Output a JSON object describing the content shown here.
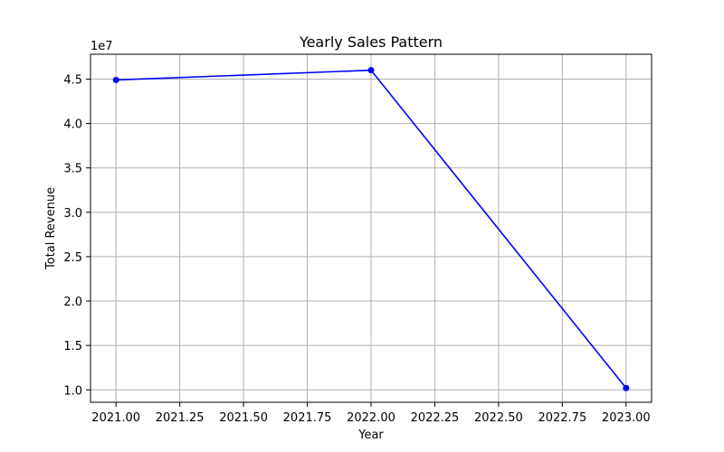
{
  "chart_data": {
    "type": "line",
    "title": "Yearly Sales Pattern",
    "xlabel": "Year",
    "ylabel": "Total Revenue",
    "y_offset_label": "1e7",
    "y_scale": 10000000,
    "x": [
      2021,
      2022,
      2023
    ],
    "series": [
      {
        "values": [
          44900000,
          46000000,
          10200000
        ],
        "color": "#0000ff"
      }
    ],
    "xlim": [
      2020.9,
      2023.1
    ],
    "ylim": [
      8600000,
      47800000
    ],
    "xticks": [
      2021.0,
      2021.25,
      2021.5,
      2021.75,
      2022.0,
      2022.25,
      2022.5,
      2022.75,
      2023.0
    ],
    "xtick_labels": [
      "2021.00",
      "2021.25",
      "2021.50",
      "2021.75",
      "2022.00",
      "2022.25",
      "2022.50",
      "2022.75",
      "2023.00"
    ],
    "yticks": [
      10000000,
      15000000,
      20000000,
      25000000,
      30000000,
      35000000,
      40000000,
      45000000
    ],
    "ytick_labels": [
      "1.0",
      "1.5",
      "2.0",
      "2.5",
      "3.0",
      "3.5",
      "4.0",
      "4.5"
    ],
    "grid": true,
    "marker": "circle"
  }
}
